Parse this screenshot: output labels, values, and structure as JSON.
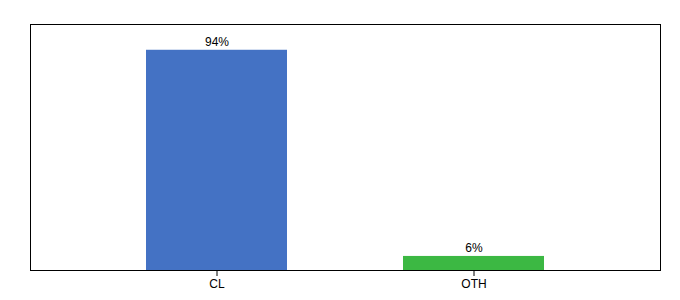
{
  "chart_data": {
    "type": "bar",
    "categories": [
      "CL",
      "OTH"
    ],
    "values": [
      94,
      6
    ],
    "colors": [
      "#4472c4",
      "#3cb843"
    ],
    "value_labels": [
      "94%",
      "6%"
    ],
    "data_labels": true,
    "ylim": [
      0,
      105
    ],
    "yticks": [],
    "tick_labels": "x",
    "grid": false
  }
}
